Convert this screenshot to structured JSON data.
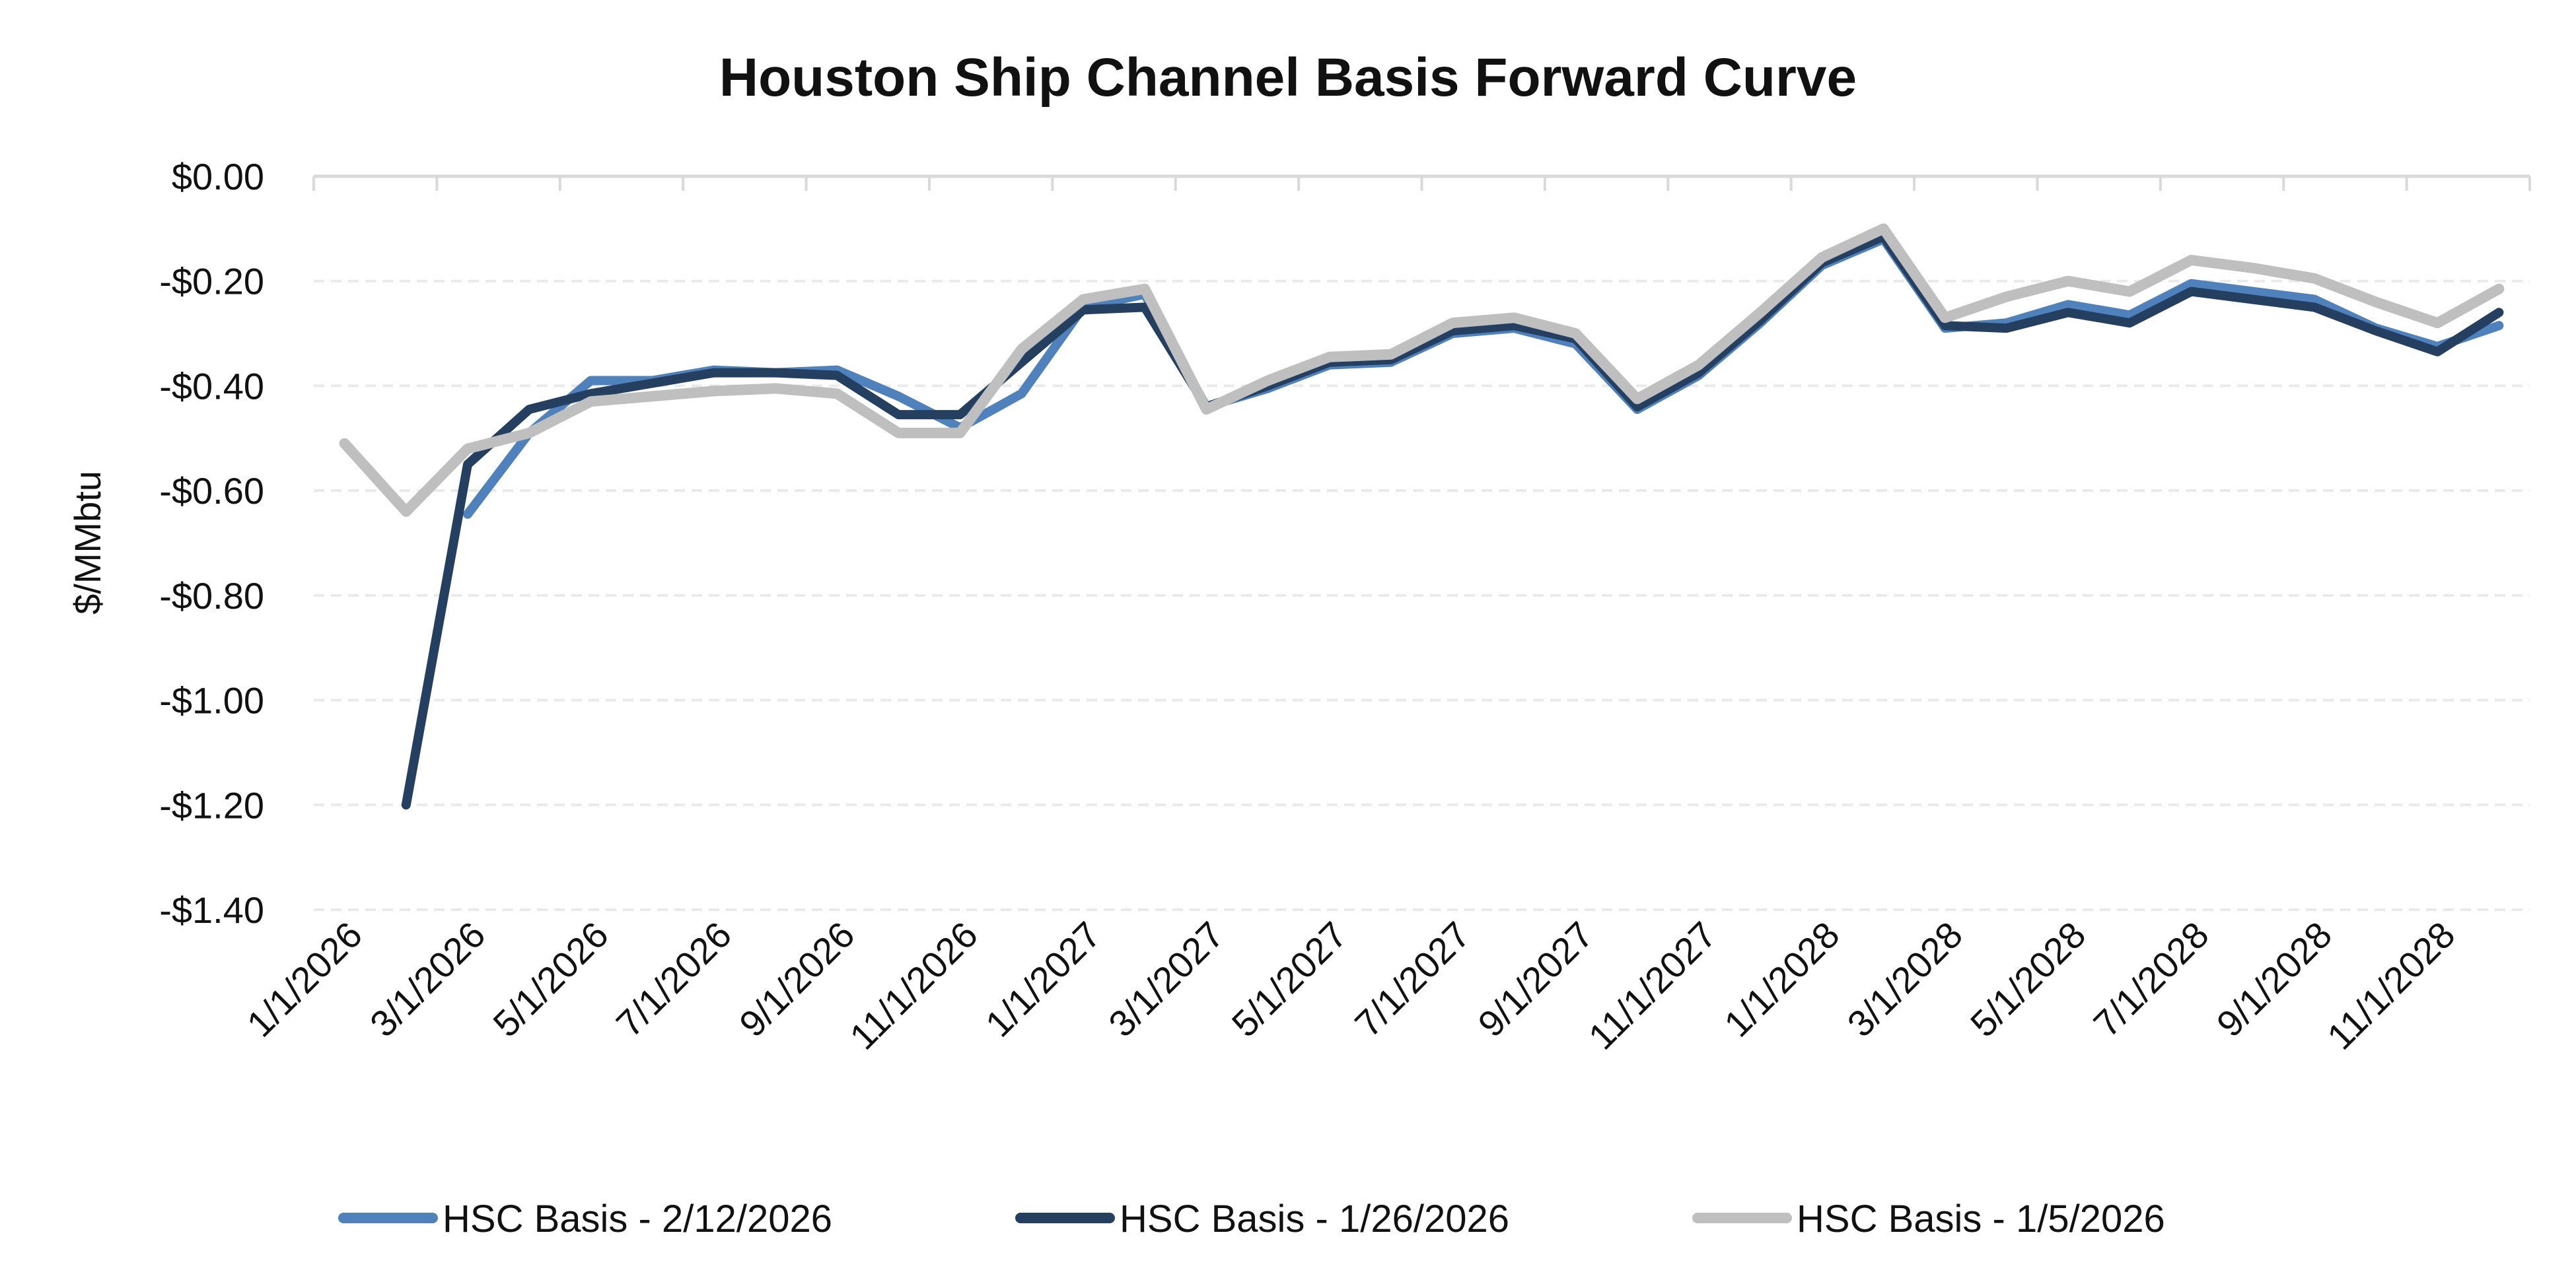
{
  "chart_data": {
    "type": "line",
    "title": "Houston Ship Channel Basis Forward Curve",
    "xlabel": "",
    "ylabel": "$/MMbtu",
    "ylim": [
      -1.4,
      0.0
    ],
    "yticks": [
      "$0.00",
      "-$0.20",
      "-$0.40",
      "-$0.60",
      "-$0.80",
      "-$1.00",
      "-$1.20",
      "-$1.40"
    ],
    "ytick_values": [
      0,
      -0.2,
      -0.4,
      -0.6,
      -0.8,
      -1.0,
      -1.2,
      -1.4
    ],
    "grid": "horizontal dashed",
    "legend": "bottom",
    "x": [
      "1/1/2026",
      "2/1/2026",
      "3/1/2026",
      "4/1/2026",
      "5/1/2026",
      "6/1/2026",
      "7/1/2026",
      "8/1/2026",
      "9/1/2026",
      "10/1/2026",
      "11/1/2026",
      "12/1/2026",
      "1/1/2027",
      "2/1/2027",
      "3/1/2027",
      "4/1/2027",
      "5/1/2027",
      "6/1/2027",
      "7/1/2027",
      "8/1/2027",
      "9/1/2027",
      "10/1/2027",
      "11/1/2027",
      "12/1/2027",
      "1/1/2028",
      "2/1/2028",
      "3/1/2028",
      "4/1/2028",
      "5/1/2028",
      "6/1/2028",
      "7/1/2028",
      "8/1/2028",
      "9/1/2028",
      "10/1/2028",
      "11/1/2028",
      "12/1/2028"
    ],
    "xtick_labels": [
      "1/1/2026",
      "3/1/2026",
      "5/1/2026",
      "7/1/2026",
      "9/1/2026",
      "11/1/2026",
      "1/1/2027",
      "3/1/2027",
      "5/1/2027",
      "7/1/2027",
      "9/1/2027",
      "11/1/2027",
      "1/1/2028",
      "3/1/2028",
      "5/1/2028",
      "7/1/2028",
      "9/1/2028",
      "11/1/2028"
    ],
    "series": [
      {
        "name": "HSC Basis - 2/12/2026",
        "color": "#4F81BD",
        "values": [
          null,
          null,
          -0.645,
          -0.49,
          -0.39,
          -0.39,
          -0.37,
          -0.375,
          -0.37,
          -0.42,
          -0.48,
          -0.415,
          -0.25,
          -0.225,
          -0.44,
          -0.405,
          -0.36,
          -0.355,
          -0.3,
          -0.29,
          -0.32,
          -0.445,
          -0.38,
          -0.28,
          -0.17,
          -0.12,
          -0.29,
          -0.28,
          -0.245,
          -0.265,
          -0.205,
          -0.22,
          -0.235,
          -0.29,
          -0.325,
          -0.285
        ]
      },
      {
        "name": "HSC Basis - 1/26/2026",
        "color": "#243F60",
        "values": [
          null,
          -1.2,
          -0.55,
          -0.445,
          -0.415,
          -0.395,
          -0.375,
          -0.375,
          -0.38,
          -0.455,
          -0.455,
          -0.355,
          -0.255,
          -0.25,
          -0.44,
          -0.4,
          -0.355,
          -0.35,
          -0.295,
          -0.285,
          -0.31,
          -0.44,
          -0.375,
          -0.275,
          -0.165,
          -0.115,
          -0.285,
          -0.29,
          -0.26,
          -0.28,
          -0.22,
          -0.235,
          -0.25,
          -0.295,
          -0.335,
          -0.26
        ]
      },
      {
        "name": "HSC Basis - 1/5/2026",
        "color": "#BFBFBF",
        "values": [
          -0.51,
          -0.64,
          -0.52,
          -0.49,
          -0.43,
          -0.42,
          -0.41,
          -0.405,
          -0.415,
          -0.49,
          -0.49,
          -0.33,
          -0.235,
          -0.215,
          -0.445,
          -0.39,
          -0.345,
          -0.34,
          -0.28,
          -0.27,
          -0.3,
          -0.425,
          -0.36,
          -0.26,
          -0.155,
          -0.1,
          -0.27,
          -0.23,
          -0.2,
          -0.22,
          -0.16,
          -0.175,
          -0.195,
          -0.24,
          -0.28,
          -0.215
        ]
      }
    ]
  }
}
